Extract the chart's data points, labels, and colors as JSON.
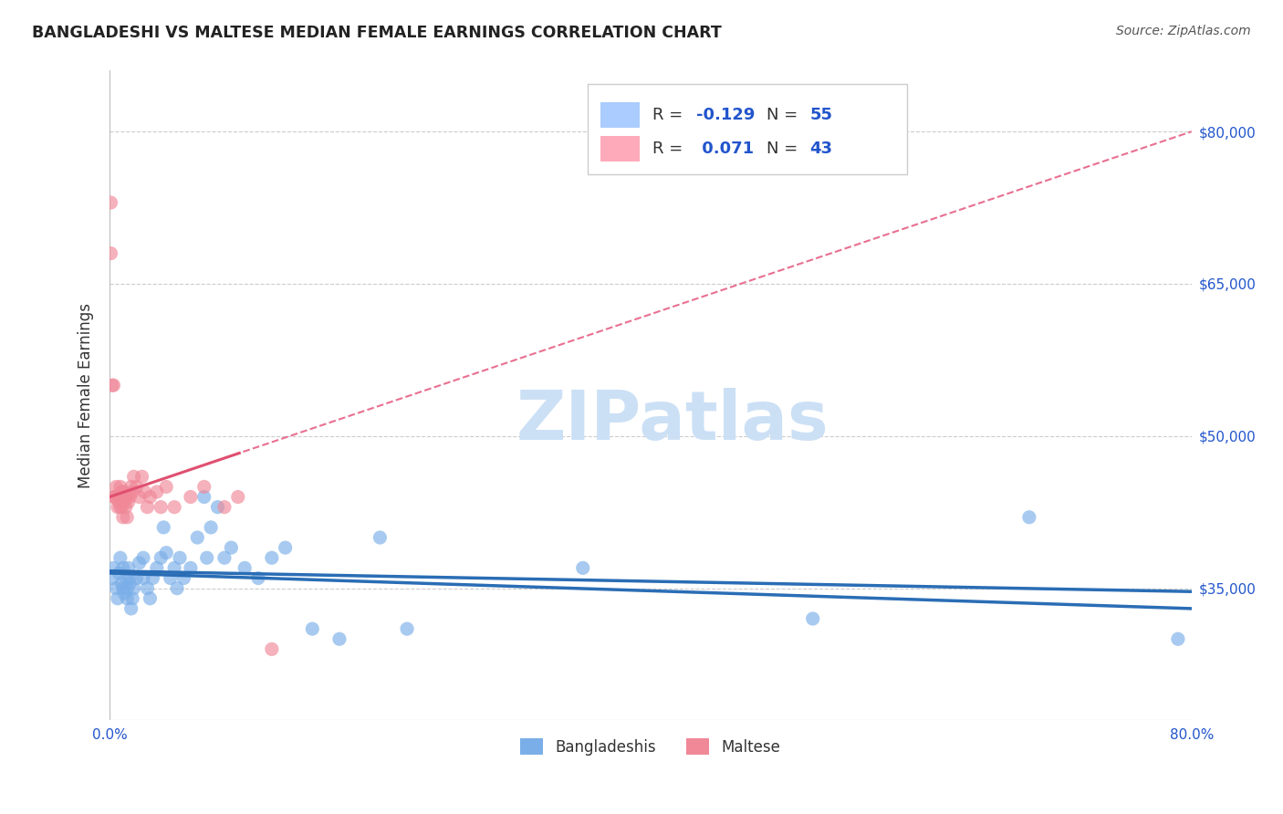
{
  "title": "BANGLADESHI VS MALTESE MEDIAN FEMALE EARNINGS CORRELATION CHART",
  "source": "Source: ZipAtlas.com",
  "ylabel": "Median Female Earnings",
  "xlim": [
    0.0,
    0.8
  ],
  "ylim": [
    22000,
    86000
  ],
  "yticks": [
    35000,
    50000,
    65000,
    80000
  ],
  "ytick_labels": [
    "$35,000",
    "$50,000",
    "$65,000",
    "$80,000"
  ],
  "xticks": [
    0.0,
    0.2,
    0.4,
    0.6,
    0.8
  ],
  "xtick_labels": [
    "0.0%",
    "",
    "",
    "",
    "80.0%"
  ],
  "background_color": "#ffffff",
  "grid_color": "#cccccc",
  "watermark_text": "ZIPatlas",
  "watermark_color": "#cce0f5",
  "bangladeshi_color": "#7aaee8",
  "maltese_color": "#f08898",
  "trend_blue_color": "#2a6db5",
  "trend_pink_solid_color": "#e05070",
  "trend_pink_dash_color": "#e87090",
  "bangladeshi_x": [
    0.002,
    0.003,
    0.005,
    0.006,
    0.007,
    0.008,
    0.009,
    0.01,
    0.01,
    0.011,
    0.012,
    0.013,
    0.013,
    0.014,
    0.015,
    0.015,
    0.016,
    0.017,
    0.018,
    0.02,
    0.022,
    0.025,
    0.025,
    0.028,
    0.03,
    0.032,
    0.035,
    0.038,
    0.04,
    0.042,
    0.045,
    0.048,
    0.05,
    0.052,
    0.055,
    0.06,
    0.065,
    0.07,
    0.072,
    0.075,
    0.08,
    0.085,
    0.09,
    0.1,
    0.11,
    0.12,
    0.13,
    0.15,
    0.17,
    0.2,
    0.22,
    0.35,
    0.52,
    0.68,
    0.79
  ],
  "bangladeshi_y": [
    36000,
    37000,
    35000,
    34000,
    36500,
    38000,
    35500,
    37000,
    35000,
    34500,
    36000,
    35000,
    34000,
    37000,
    36000,
    35500,
    33000,
    34000,
    35000,
    36000,
    37500,
    38000,
    36000,
    35000,
    34000,
    36000,
    37000,
    38000,
    41000,
    38500,
    36000,
    37000,
    35000,
    38000,
    36000,
    37000,
    40000,
    44000,
    38000,
    41000,
    43000,
    38000,
    39000,
    37000,
    36000,
    38000,
    39000,
    31000,
    30000,
    40000,
    31000,
    37000,
    32000,
    42000,
    30000
  ],
  "maltese_x": [
    0.001,
    0.002,
    0.003,
    0.004,
    0.005,
    0.005,
    0.006,
    0.007,
    0.007,
    0.008,
    0.008,
    0.009,
    0.009,
    0.01,
    0.01,
    0.011,
    0.011,
    0.012,
    0.012,
    0.013,
    0.013,
    0.014,
    0.015,
    0.016,
    0.017,
    0.018,
    0.02,
    0.022,
    0.024,
    0.026,
    0.028,
    0.03,
    0.035,
    0.038,
    0.042,
    0.048,
    0.06,
    0.07,
    0.085,
    0.095,
    0.12,
    0.003,
    0.001
  ],
  "maltese_y": [
    73000,
    55000,
    44000,
    44000,
    44000,
    45000,
    43000,
    43500,
    44000,
    45000,
    43000,
    44500,
    43000,
    42000,
    44000,
    44500,
    43500,
    44000,
    43000,
    42000,
    44000,
    43500,
    44000,
    45000,
    44500,
    46000,
    45000,
    44000,
    46000,
    44500,
    43000,
    44000,
    44500,
    43000,
    45000,
    43000,
    44000,
    45000,
    43000,
    44000,
    29000,
    55000,
    68000
  ]
}
